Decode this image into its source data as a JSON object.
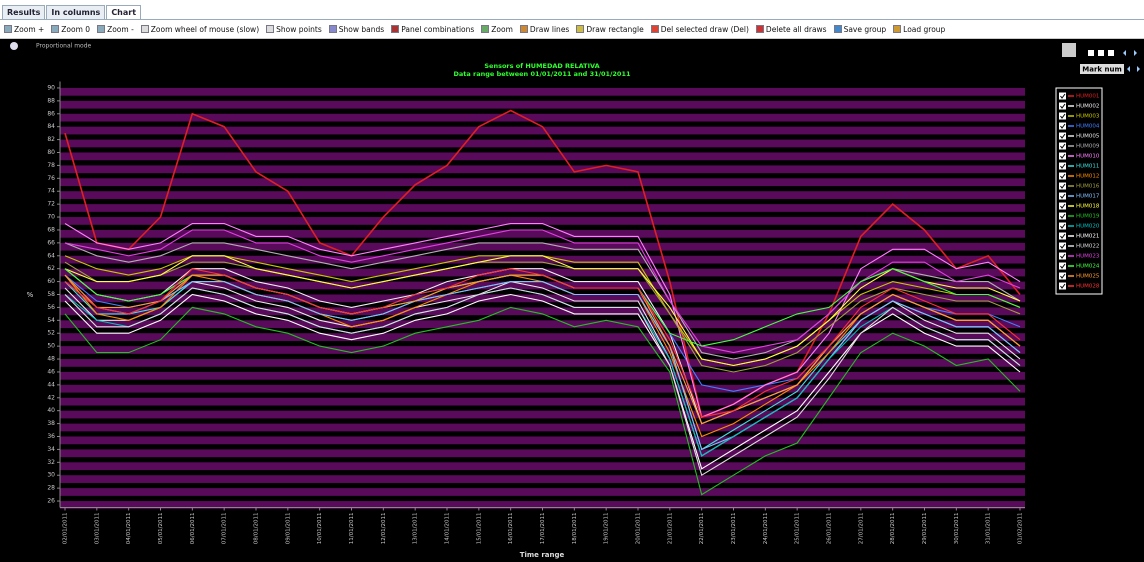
{
  "tabs": [
    "Results",
    "In columns",
    "Chart"
  ],
  "toolbar": [
    "Zoom +",
    "Zoom 0",
    "Zoom -",
    "Zoom wheel of mouse (slow)",
    "Show points",
    "Show bands",
    "Panel combinations",
    "Zoom",
    "Draw lines",
    "Draw rectangle",
    "Del selected draw (Del)",
    "Delete all draws",
    "Save group",
    "Load group"
  ],
  "proportional_mode": "Proportional mode",
  "mark_num": "Mark num",
  "chart_data": {
    "type": "line",
    "title": "Sensors of HUMEDAD RELATIVA",
    "subtitle": "Data range between 01/01/2011 and 31/01/2011",
    "x_label": "Time range",
    "y_label": "%",
    "bands": true,
    "band_color": "#5a0a5a",
    "categories": [
      "02/01/2011",
      "03/01/2011",
      "04/01/2011",
      "05/01/2011",
      "06/01/2011",
      "07/01/2011",
      "08/01/2011",
      "09/01/2011",
      "10/01/2011",
      "11/01/2011",
      "12/01/2011",
      "13/01/2011",
      "14/01/2011",
      "15/01/2011",
      "16/01/2011",
      "17/01/2011",
      "18/01/2011",
      "19/01/2011",
      "20/01/2011",
      "21/01/2011",
      "22/01/2011",
      "23/01/2011",
      "24/01/2011",
      "25/01/2011",
      "26/01/2011",
      "27/01/2011",
      "28/01/2011",
      "29/01/2011",
      "30/01/2011",
      "31/01/2011",
      "01/02/2011"
    ],
    "ylim": [
      25,
      91
    ],
    "yticks": [
      26,
      28,
      30,
      32,
      34,
      36,
      38,
      40,
      42,
      44,
      46,
      48,
      50,
      52,
      54,
      56,
      58,
      60,
      62,
      64,
      66,
      68,
      70,
      72,
      74,
      76,
      78,
      80,
      82,
      84,
      86,
      88,
      90
    ],
    "legend": "right",
    "series": [
      {
        "name": "HUM001",
        "color": "#e02020",
        "values": [
          83,
          66,
          65,
          70,
          86,
          84,
          77,
          74,
          66,
          64,
          70,
          75,
          78,
          84,
          86.5,
          84,
          77,
          78,
          77,
          60,
          39,
          41,
          44,
          46,
          55,
          67,
          72,
          68,
          62,
          64,
          58
        ]
      },
      {
        "name": "HUM002",
        "color": "#f0f0f0",
        "values": [
          62,
          58,
          57,
          58,
          62,
          62,
          60,
          59,
          57,
          56,
          57,
          58,
          60,
          61,
          62,
          62,
          60,
          60,
          60,
          52,
          38,
          40,
          42,
          44,
          50,
          55,
          58,
          56,
          54,
          54,
          50
        ]
      },
      {
        "name": "HUM003",
        "color": "#c8c800",
        "values": [
          64,
          62,
          61,
          62,
          64,
          64,
          63,
          62,
          61,
          60,
          61,
          62,
          63,
          64,
          64,
          64,
          63,
          63,
          63,
          55,
          48,
          47,
          48,
          50,
          54,
          58,
          60,
          59,
          58,
          58,
          56
        ]
      },
      {
        "name": "HUM004",
        "color": "#4080ff",
        "values": [
          61,
          57,
          56,
          57,
          61,
          61,
          59,
          58,
          56,
          55,
          56,
          58,
          59,
          60,
          61,
          61,
          59,
          59,
          59,
          52,
          44,
          43,
          44,
          45,
          50,
          55,
          58,
          56,
          55,
          55,
          53
        ]
      },
      {
        "name": "HUM005",
        "color": "#e8e8e8",
        "values": [
          59,
          54,
          54,
          56,
          60,
          59,
          57,
          56,
          54,
          53,
          54,
          56,
          57,
          58,
          60,
          59,
          57,
          57,
          57,
          48,
          33,
          36,
          39,
          42,
          48,
          54,
          57,
          54,
          52,
          52,
          48
        ]
      },
      {
        "name": "HUM009",
        "color": "#b0b0b0",
        "values": [
          66,
          64,
          63,
          64,
          66,
          66,
          65,
          64,
          63,
          62,
          63,
          64,
          65,
          66,
          66,
          66,
          65,
          65,
          65,
          57,
          49,
          48,
          49,
          51,
          55,
          60,
          62,
          61,
          60,
          60,
          57
        ]
      },
      {
        "name": "HUM010",
        "color": "#ff80ff",
        "values": [
          69,
          66,
          65,
          66,
          69,
          69,
          67,
          67,
          65,
          64,
          65,
          66,
          67,
          68,
          69,
          69,
          67,
          67,
          67,
          58,
          39,
          41,
          44,
          46,
          52,
          62,
          65,
          65,
          62,
          63,
          60
        ]
      },
      {
        "name": "HUM011",
        "color": "#40e0e0",
        "values": [
          60,
          55,
          55,
          56,
          60,
          60,
          58,
          57,
          55,
          54,
          55,
          57,
          58,
          59,
          60,
          60,
          58,
          58,
          58,
          50,
          34,
          37,
          40,
          43,
          49,
          54,
          57,
          55,
          53,
          53,
          49
        ]
      },
      {
        "name": "HUM012",
        "color": "#ff8c00",
        "values": [
          61,
          55,
          54,
          56,
          61,
          60,
          58,
          57,
          55,
          53,
          54,
          56,
          58,
          60,
          61,
          60,
          58,
          58,
          58,
          49,
          36,
          38,
          41,
          44,
          49,
          55,
          58,
          56,
          54,
          54,
          50
        ]
      },
      {
        "name": "HUM016",
        "color": "#a0a040",
        "values": [
          63,
          60,
          60,
          61,
          63,
          63,
          62,
          61,
          60,
          59,
          60,
          61,
          62,
          63,
          63,
          63,
          62,
          62,
          62,
          55,
          47,
          46,
          47,
          49,
          53,
          57,
          59,
          58,
          57,
          57,
          55
        ]
      },
      {
        "name": "HUM017",
        "color": "#80c0ff",
        "values": [
          60,
          56,
          55,
          57,
          60,
          60,
          58,
          57,
          55,
          54,
          55,
          57,
          58,
          59,
          60,
          60,
          58,
          58,
          58,
          50,
          34,
          36,
          39,
          42,
          48,
          54,
          57,
          55,
          53,
          53,
          49
        ]
      },
      {
        "name": "HUM018",
        "color": "#ffff40",
        "values": [
          62,
          60,
          60,
          61,
          64,
          64,
          62,
          61,
          60,
          59,
          60,
          61,
          62,
          63,
          64,
          64,
          62,
          62,
          62,
          56,
          48,
          47,
          48,
          50,
          54,
          59,
          62,
          60,
          59,
          59,
          57
        ]
      },
      {
        "name": "HUM019",
        "color": "#20c020",
        "values": [
          55,
          49,
          49,
          51,
          56,
          55,
          53,
          52,
          50,
          49,
          50,
          52,
          53,
          54,
          56,
          55,
          53,
          54,
          53,
          46,
          27,
          30,
          33,
          35,
          42,
          49,
          52,
          50,
          47,
          48,
          43
        ]
      },
      {
        "name": "HUM020",
        "color": "#00c0c0",
        "values": [
          58,
          54,
          53,
          55,
          59,
          58,
          56,
          55,
          53,
          52,
          53,
          55,
          56,
          58,
          59,
          58,
          56,
          56,
          56,
          48,
          33,
          36,
          39,
          42,
          48,
          53,
          56,
          53,
          51,
          51,
          47
        ]
      },
      {
        "name": "HUM021",
        "color": "#ffffff",
        "values": [
          57,
          52,
          52,
          54,
          58,
          57,
          55,
          54,
          52,
          51,
          52,
          54,
          55,
          57,
          58,
          57,
          55,
          55,
          55,
          47,
          31,
          34,
          37,
          40,
          46,
          52,
          55,
          52,
          50,
          50,
          46
        ]
      },
      {
        "name": "HUM022",
        "color": "#dcdcdc",
        "values": [
          58,
          53,
          53,
          55,
          59,
          58,
          56,
          55,
          53,
          52,
          53,
          55,
          56,
          58,
          59,
          58,
          56,
          56,
          56,
          47,
          30,
          33,
          36,
          39,
          45,
          52,
          56,
          53,
          51,
          51,
          47
        ]
      },
      {
        "name": "HUM023",
        "color": "#e040e0",
        "values": [
          66,
          65,
          64,
          65,
          68,
          68,
          66,
          66,
          64,
          63,
          64,
          65,
          66,
          67,
          68,
          68,
          66,
          66,
          66,
          57,
          50,
          49,
          50,
          51,
          55,
          60,
          63,
          63,
          60,
          61,
          59
        ]
      },
      {
        "name": "HUM024",
        "color": "#40ff40",
        "values": [
          62,
          58,
          57,
          58,
          61,
          61,
          59,
          58,
          56,
          55,
          56,
          57,
          59,
          60,
          61,
          61,
          59,
          59,
          59,
          52,
          50,
          51,
          53,
          55,
          56,
          60,
          62,
          60,
          58,
          58,
          56
        ]
      },
      {
        "name": "HUM025",
        "color": "#ff9933",
        "values": [
          61,
          56,
          56,
          57,
          61,
          61,
          59,
          58,
          56,
          55,
          56,
          57,
          59,
          60,
          61,
          61,
          59,
          59,
          59,
          50,
          38,
          40,
          42,
          44,
          50,
          55,
          58,
          56,
          54,
          54,
          50
        ]
      },
      {
        "name": "HUM028",
        "color": "#ff3030",
        "values": [
          60,
          56,
          55,
          57,
          62,
          61,
          59,
          58,
          56,
          55,
          56,
          58,
          59,
          61,
          62,
          61,
          59,
          59,
          59,
          51,
          39,
          40,
          43,
          45,
          50,
          56,
          59,
          57,
          55,
          55,
          51
        ]
      }
    ]
  }
}
